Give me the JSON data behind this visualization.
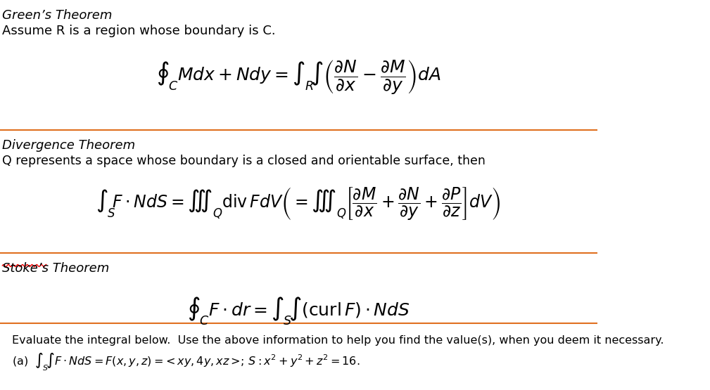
{
  "bg_color": "#ffffff",
  "orange_line_color": "#e07020",
  "text_color": "#000000",
  "title_fontsize": 13,
  "body_fontsize": 12,
  "math_fontsize": 15,
  "section1_title": "Green’s Theorem",
  "section1_subtitle": "Assume R is a region whose boundary is C.",
  "section1_formula": "\\oint_{C} Mdx + Ndy = \\int_{R}^{} \\int \\left(\\frac{\\partial N}{\\partial x} - \\frac{\\partial M}{\\partial y}\\right) dA",
  "section2_title": "Divergence Theorem",
  "section2_subtitle": "Q represents a space whose boundary is a closed and orientable surface, then",
  "section2_formula": "\\int_{S}^{} F \\cdot NdS = \\iiint_{Q} \\mathrm{div}\\, FdV \\left( = \\iiint_{Q} \\left[\\frac{\\partial M}{\\partial x} + \\frac{\\partial N}{\\partial y} + \\frac{\\partial P}{\\partial z}\\right] dV \\right)",
  "section3_title": "Stoke’s Theorem",
  "section3_formula": "\\oint_{C} F \\cdot dr = \\int_{S}^{} \\int (\\mathrm{curl}\\, F) \\cdot NdS",
  "bottom_text1": "Evaluate the integral below.  Use the above information to help you find the value(s), when you deem it necessary.",
  "bottom_text2": "(a)  $\\int_{S}^{} \\int F \\cdot NdS = F(x, y, z) =\\!< xy, 4y, xz >\\!; S: x^2 + y^2 + z^2 = 16.$"
}
